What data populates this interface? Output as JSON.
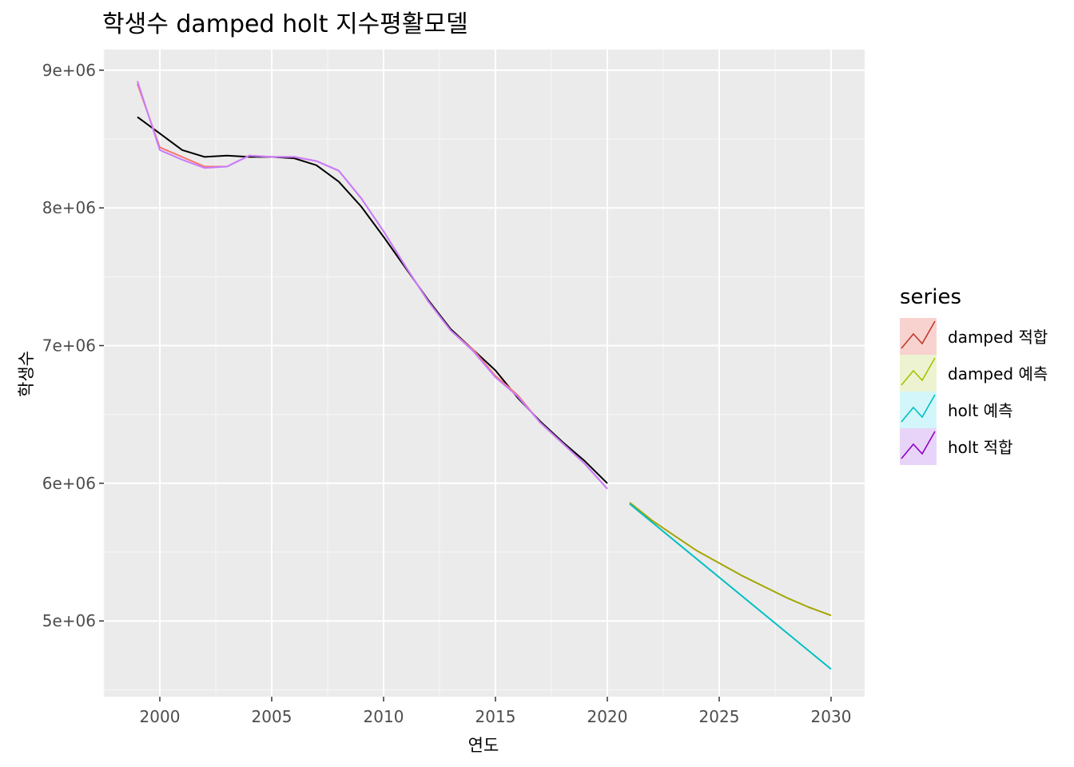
{
  "chart_data": {
    "type": "line",
    "title": "학생수 damped holt 지수평활모델",
    "xlabel": "연도",
    "ylabel": "학생수",
    "xlim": [
      1997.5,
      2031.5
    ],
    "ylim": [
      4450000,
      9150000
    ],
    "x_ticks": [
      2000,
      2005,
      2010,
      2015,
      2020,
      2025,
      2030
    ],
    "x_tick_labels": [
      "2000",
      "2005",
      "2010",
      "2015",
      "2020",
      "2025",
      "2030"
    ],
    "y_ticks": [
      5000000,
      6000000,
      7000000,
      8000000,
      9000000
    ],
    "y_tick_labels": [
      "5e+06",
      "6e+06",
      "7e+06",
      "8e+06",
      "9e+06"
    ],
    "grid": true,
    "legend_title": "series",
    "legend_position": "right",
    "observed": {
      "color": "#000000",
      "x": [
        1999,
        2000,
        2001,
        2002,
        2003,
        2004,
        2005,
        2006,
        2007,
        2008,
        2009,
        2010,
        2011,
        2012,
        2013,
        2014,
        2015,
        2016,
        2017,
        2018,
        2019,
        2020
      ],
      "y": [
        8660000,
        8540000,
        8420000,
        8370000,
        8380000,
        8370000,
        8370000,
        8360000,
        8310000,
        8190000,
        8010000,
        7790000,
        7560000,
        7330000,
        7120000,
        6970000,
        6820000,
        6620000,
        6450000,
        6300000,
        6160000,
        6000000
      ]
    },
    "series": [
      {
        "name": " damped 적합",
        "color": "#F8766D",
        "x": [
          1999,
          2000,
          2001,
          2002,
          2003,
          2004,
          2005,
          2006,
          2007,
          2008,
          2009,
          2010,
          2011,
          2012,
          2013,
          2014,
          2015,
          2016,
          2017,
          2018,
          2019,
          2020
        ],
        "y": [
          8900000,
          8440000,
          8370000,
          8300000,
          8300000,
          8380000,
          8370000,
          8370000,
          8340000,
          8270000,
          8070000,
          7830000,
          7570000,
          7320000,
          7110000,
          6970000,
          6780000,
          6640000,
          6440000,
          6290000,
          6140000,
          5960000
        ]
      },
      {
        "name": "damped 예측",
        "color": "#A3A500",
        "x": [
          2021,
          2022,
          2023,
          2024,
          2025,
          2026,
          2027,
          2028,
          2029,
          2030
        ],
        "y": [
          5860000,
          5730000,
          5620000,
          5510000,
          5420000,
          5330000,
          5250000,
          5170000,
          5100000,
          5040000
        ]
      },
      {
        "name": "holt 예측",
        "color": "#00BFC4",
        "x": [
          2021,
          2030
        ],
        "y": [
          5850000,
          4650000
        ]
      },
      {
        "name": "holt 적합",
        "color": "#C77CFF",
        "x": [
          1999,
          2000,
          2001,
          2002,
          2003,
          2004,
          2005,
          2006,
          2007,
          2008,
          2009,
          2010,
          2011,
          2012,
          2013,
          2014,
          2015,
          2016,
          2017,
          2018,
          2019,
          2020
        ],
        "y": [
          8920000,
          8420000,
          8350000,
          8290000,
          8300000,
          8380000,
          8370000,
          8370000,
          8340000,
          8270000,
          8070000,
          7830000,
          7570000,
          7320000,
          7110000,
          6960000,
          6770000,
          6630000,
          6440000,
          6290000,
          6140000,
          5960000
        ]
      }
    ],
    "legend_entries": [
      {
        "label": " damped 적합",
        "color": "#F8766D",
        "key_fill": "#F8D2CF",
        "key_line": "#C0392B"
      },
      {
        "label": "damped 예측",
        "color": "#A3A500",
        "key_fill": "#EDF3D1",
        "key_line": "#A3C400"
      },
      {
        "label": "holt 예측",
        "color": "#00BFC4",
        "key_fill": "#D2F6F9",
        "key_line": "#00BFC4"
      },
      {
        "label": "holt 적합",
        "color": "#C77CFF",
        "key_fill": "#E8D4F8",
        "key_line": "#8E00C8"
      }
    ]
  }
}
